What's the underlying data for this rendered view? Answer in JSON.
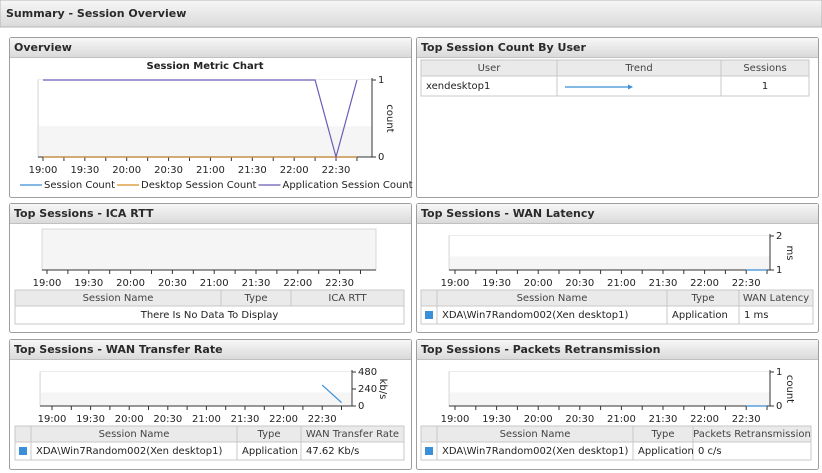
{
  "header": {
    "title": "Summary  - Session Overview"
  },
  "panels": [
    {
      "title": "Overview",
      "chart": {
        "type": "line",
        "title": "Session Metric Chart",
        "y_label": "count",
        "legend": true,
        "categories": [
          "19:00",
          null,
          "19:30",
          null,
          "20:00",
          null,
          "20:30",
          null,
          "21:00",
          null,
          "21:30",
          null,
          "22:00",
          null,
          "22:30",
          null
        ],
        "ylim": [
          0,
          1
        ],
        "yticks": [
          0,
          1
        ],
        "series": [
          {
            "name": "Session Count",
            "color": "#3a8fd8",
            "values": [
              0,
              0,
              0,
              0,
              0,
              0,
              0,
              0,
              0,
              0,
              0,
              0,
              0,
              0,
              0,
              0
            ]
          },
          {
            "name": "Desktop Session Count",
            "color": "#d98c2b",
            "values": [
              0,
              0,
              0,
              0,
              0,
              0,
              0,
              0,
              0,
              0,
              0,
              0,
              0,
              0,
              0,
              0
            ]
          },
          {
            "name": "Application Session Count",
            "color": "#6a5cb8",
            "values": [
              1,
              1,
              1,
              1,
              1,
              1,
              1,
              1,
              1,
              1,
              1,
              1,
              1,
              1,
              0,
              1
            ]
          }
        ]
      }
    },
    {
      "title": "Top Session Count By User",
      "table": {
        "columns": [
          "User",
          "Trend",
          "Sessions"
        ],
        "rows": [
          [
            "xendesktop1",
            null,
            1
          ]
        ]
      }
    },
    {
      "title": "Top Sessions - ICA RTT",
      "chart": {
        "type": "line",
        "categories": [
          "19:00",
          null,
          "19:30",
          null,
          "20:00",
          null,
          "20:30",
          null,
          "21:00",
          null,
          "21:30",
          null,
          "22:00",
          null,
          "22:30",
          null
        ],
        "series": []
      },
      "table": {
        "columns": [
          "Session Name",
          "Type",
          "ICA RTT"
        ],
        "rows": [],
        "empty_message": "There Is No Data To Display"
      }
    },
    {
      "title": "Top Sessions - WAN Latency",
      "chart": {
        "type": "line",
        "y_label": "ms",
        "categories": [
          "19:00",
          null,
          "19:30",
          null,
          "20:00",
          null,
          "20:30",
          null,
          "21:00",
          null,
          "21:30",
          null,
          "22:00",
          null,
          "22:30",
          null
        ],
        "ylim": [
          1,
          2
        ],
        "yticks": [
          1,
          2
        ],
        "series": [
          {
            "color": "#3a8fd8",
            "values": [
              null,
              null,
              null,
              null,
              null,
              null,
              null,
              null,
              null,
              null,
              null,
              null,
              null,
              null,
              1,
              1
            ]
          }
        ]
      },
      "table": {
        "columns": [
          "Session Name",
          "Type",
          "WAN Latency"
        ],
        "rows": [
          [
            "XDA\\Win7Random002(Xen desktop1)",
            "Application",
            "1 ms"
          ]
        ]
      }
    },
    {
      "title": "Top Sessions - WAN Transfer Rate",
      "chart": {
        "type": "line",
        "y_label": "kb/s",
        "categories": [
          "19:00",
          null,
          "19:30",
          null,
          "20:00",
          null,
          "20:30",
          null,
          "21:00",
          null,
          "21:30",
          null,
          "22:00",
          null,
          "22:30",
          null
        ],
        "ylim": [
          0,
          480
        ],
        "yticks": [
          0,
          240,
          480
        ],
        "series": [
          {
            "color": "#3a8fd8",
            "values": [
              null,
              null,
              null,
              null,
              null,
              null,
              null,
              null,
              null,
              null,
              null,
              null,
              null,
              null,
              296,
              48
            ]
          }
        ]
      },
      "table": {
        "columns": [
          "Session Name",
          "Type",
          "WAN Transfer Rate"
        ],
        "rows": [
          [
            "XDA\\Win7Random002(Xen desktop1)",
            "Application",
            "47.62 Kb/s"
          ]
        ]
      }
    },
    {
      "title": "Top Sessions - Packets Retransmission",
      "chart": {
        "type": "line",
        "y_label": "count",
        "categories": [
          "19:00",
          null,
          "19:30",
          null,
          "20:00",
          null,
          "20:30",
          null,
          "21:00",
          null,
          "21:30",
          null,
          "22:00",
          null,
          "22:30",
          null
        ],
        "ylim": [
          0,
          1
        ],
        "yticks": [
          0,
          1
        ],
        "series": [
          {
            "color": "#3a8fd8",
            "values": [
              null,
              null,
              null,
              null,
              null,
              null,
              null,
              null,
              null,
              null,
              null,
              null,
              null,
              null,
              0,
              0
            ]
          }
        ]
      },
      "table": {
        "columns": [
          "Session Name",
          "Type",
          "Packets Retransmission"
        ],
        "rows": [
          [
            "XDA\\Win7Random002(Xen desktop1)",
            "Application",
            "0 c/s"
          ]
        ]
      }
    }
  ]
}
